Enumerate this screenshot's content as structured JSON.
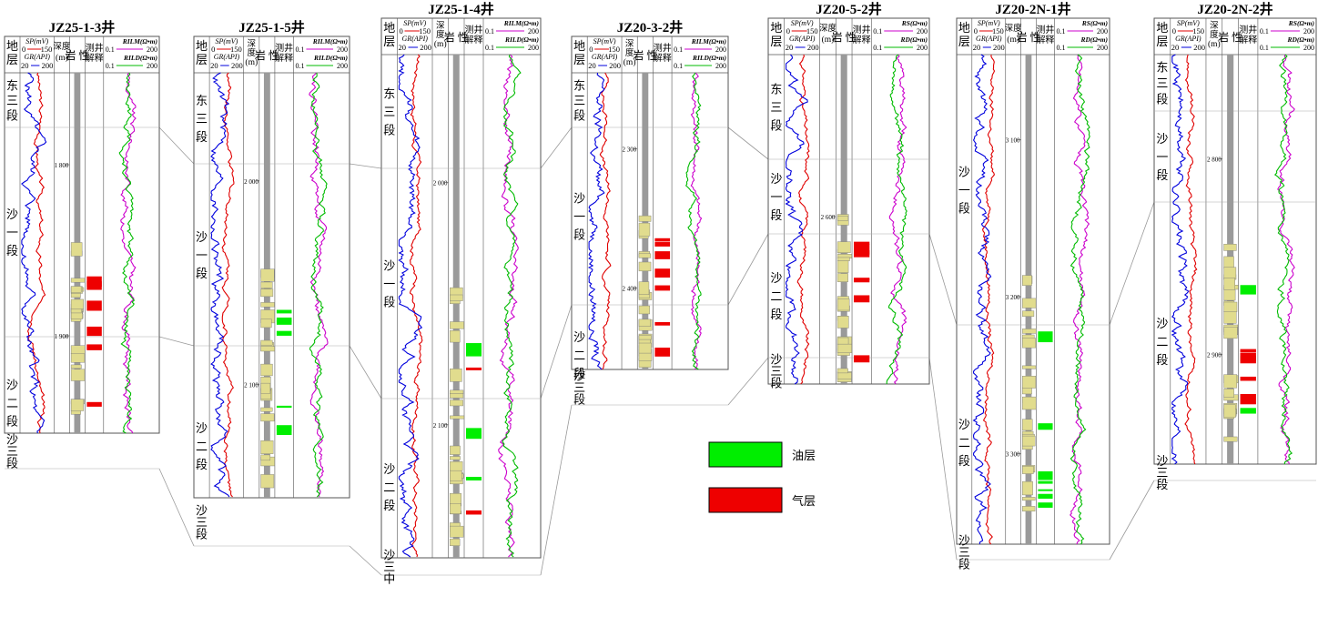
{
  "wells": [
    {
      "name": "JZ25-1-3井",
      "tracks": {
        "strat": "地\n层",
        "sp": "SP(mV)",
        "sp_scale": [
          "0",
          "150"
        ],
        "gr": "GR(API)",
        "gr_scale": [
          "20",
          "200"
        ],
        "depth": "深度\n(m)",
        "litho": "岩 性",
        "interp": "测井\n解释",
        "r1": "RILM(Ω•m)",
        "r1_scale": [
          "0.1",
          "200"
        ],
        "r2": "RILD(Ω•m)",
        "r2_scale": [
          "0.1",
          "200"
        ]
      },
      "depth_ticks": [
        "1 800",
        "1 900"
      ],
      "zones": [
        "东三段",
        "沙一段",
        "沙二段",
        "沙三段"
      ]
    },
    {
      "name": "JZ25-1-5井",
      "tracks": {
        "strat": "地\n层",
        "sp": "SP(mV)",
        "sp_scale": [
          "0",
          "150"
        ],
        "gr": "GR(API)",
        "gr_scale": [
          "20",
          "200"
        ],
        "depth": "深\n度\n(m)",
        "litho": "岩 性",
        "interp": "测井\n解释",
        "r1": "RILM(Ω•m)",
        "r1_scale": [
          "0.1",
          "200"
        ],
        "r2": "RILD(Ω•m)",
        "r2_scale": [
          "0.1",
          "200"
        ]
      },
      "depth_ticks": [
        "2 000",
        "2 100"
      ],
      "zones": [
        "东三段",
        "沙一段",
        "沙二段",
        "沙三段"
      ]
    },
    {
      "name": "JZ25-1-4井",
      "tracks": {
        "strat": "地\n层",
        "sp": "SP(mV)",
        "sp_scale": [
          "0",
          "150"
        ],
        "gr": "GR(API)",
        "gr_scale": [
          "20",
          "200"
        ],
        "depth": "深\n度\n(m)",
        "litho": "岩 性",
        "interp": "测井\n解释",
        "r1": "RILM(Ω•m)",
        "r1_scale": [
          "0.1",
          "200"
        ],
        "r2": "RILD(Ω•m)",
        "r2_scale": [
          "0.1",
          "200"
        ]
      },
      "depth_ticks": [
        "2 000",
        "2 100"
      ],
      "zones": [
        "东三段",
        "沙一段",
        "沙二段",
        "沙三中"
      ]
    },
    {
      "name": "JZ20-3-2井",
      "tracks": {
        "strat": "地\n层",
        "sp": "SP(mV)",
        "sp_scale": [
          "0",
          "150"
        ],
        "gr": "GR(API)",
        "gr_scale": [
          "20",
          "200"
        ],
        "depth": "深\n度\n(m)",
        "litho": "岩 性",
        "interp": "测井\n解释",
        "r1": "RILM(Ω•m)",
        "r1_scale": [
          "0.1",
          "200"
        ],
        "r2": "RILD(Ω•m)",
        "r2_scale": [
          "0.1",
          "200"
        ]
      },
      "depth_ticks": [
        "2 300",
        "2 400"
      ],
      "zones": [
        "东三段",
        "沙一段",
        "沙二段",
        "沙三段"
      ]
    },
    {
      "name": "JZ20-5-2井",
      "tracks": {
        "strat": "地\n层",
        "sp": "SP(mV)",
        "sp_scale": [
          "0",
          "150"
        ],
        "gr": "GR(API)",
        "gr_scale": [
          "20",
          "200"
        ],
        "depth": "深度\n(m)",
        "litho": "岩 性",
        "interp": "测井\n解释",
        "r1": "RS(Ω•m)",
        "r1_scale": [
          "0.1",
          "200"
        ],
        "r2": "RD(Ω•m)",
        "r2_scale": [
          "0.1",
          "200"
        ]
      },
      "depth_ticks": [
        "2 600"
      ],
      "zones": [
        "东三段",
        "沙一段",
        "沙二段",
        "沙三段"
      ]
    },
    {
      "name": "JZ20-2N-1井",
      "tracks": {
        "strat": "地\n层",
        "sp": "SP(mV)",
        "sp_scale": [
          "0",
          "150"
        ],
        "gr": "GR(API)",
        "gr_scale": [
          "20",
          "200"
        ],
        "depth": "深度\n(m)",
        "litho": "岩 性",
        "interp": "测井\n解释",
        "r1": "RS(Ω•m)",
        "r1_scale": [
          "0.1",
          "200"
        ],
        "r2": "RD(Ω•m)",
        "r2_scale": [
          "0.1",
          "200"
        ]
      },
      "depth_ticks": [
        "3 100",
        "3 200",
        "3 300"
      ],
      "zones": [
        "沙一段",
        "沙二段",
        "沙三段"
      ]
    },
    {
      "name": "JZ20-2N-2井",
      "tracks": {
        "strat": "地\n层",
        "sp": "SP(mV)",
        "sp_scale": [
          "0",
          "150"
        ],
        "gr": "GR(API)",
        "gr_scale": [
          "20",
          "200"
        ],
        "depth": "深\n度\n(m)",
        "litho": "岩 性",
        "interp": "测井\n解释",
        "r1": "RS(Ω•m)",
        "r1_scale": [
          "0.1",
          "200"
        ],
        "r2": "RD(Ω•m)",
        "r2_scale": [
          "0.1",
          "200"
        ]
      },
      "depth_ticks": [
        "2 800",
        "2 900"
      ],
      "zones": [
        "东三段",
        "沙一段",
        "沙二段",
        "沙三段"
      ]
    }
  ],
  "legend": {
    "oil": "油层",
    "gas": "气层"
  },
  "colors": {
    "sp": "#e00000",
    "gr": "#0000dd",
    "r1": "#cc00cc",
    "r2": "#00bb00",
    "oil": "#00ee00",
    "gas": "#ee0000",
    "sand": "#e1dc8e",
    "shale": "#9a9a9a",
    "frame": "#555555"
  }
}
